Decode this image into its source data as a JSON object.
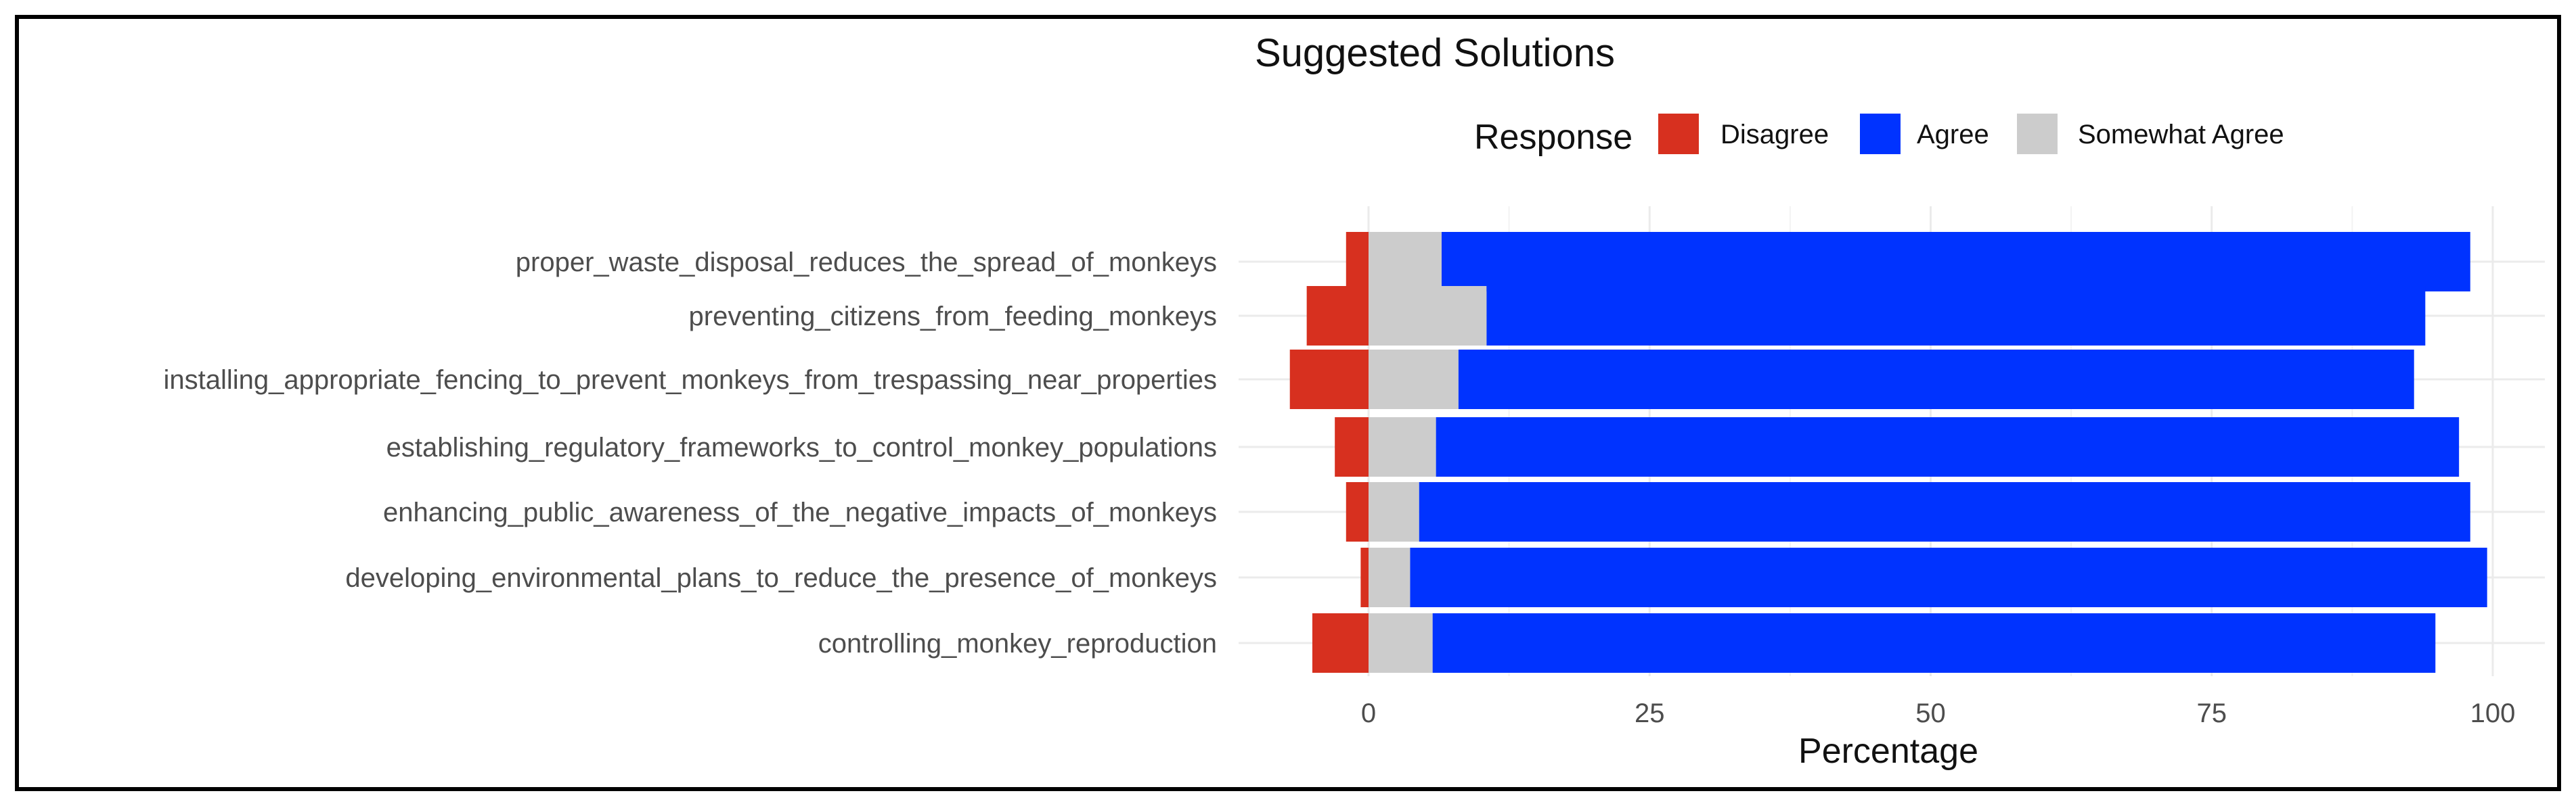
{
  "chart_data": {
    "type": "bar",
    "orientation": "horizontal",
    "stacked": "diverging",
    "title": "Suggested Solutions",
    "xlabel": "Percentage",
    "ylabel": "",
    "xlim": [
      -8,
      101
    ],
    "x_ticks": [
      0,
      25,
      50,
      75,
      100
    ],
    "grid": true,
    "legend": {
      "title": "Response",
      "placement": "top-right",
      "entries": [
        "Disagree",
        "Agree",
        "Somewhat Agree"
      ]
    },
    "categories": [
      "proper_waste_disposal_reduces_the_spread_of_monkeys",
      "preventing_citizens_from_feeding_monkeys",
      "installing_appropriate_fencing_to_prevent_monkeys_from_trespassing_near_properties",
      "establishing_regulatory_frameworks_to_control_monkey_populations",
      "enhancing_public_awareness_of_the_negative_impacts_of_monkeys",
      "developing_environmental_plans_to_reduce_the_presence_of_monkeys",
      "controlling_monkey_reproduction"
    ],
    "series": [
      {
        "name": "Disagree",
        "color": "#d7301f",
        "direction": "negative",
        "values": [
          2.0,
          5.5,
          7.0,
          3.0,
          2.0,
          0.7,
          5.0
        ]
      },
      {
        "name": "Somewhat Agree",
        "color": "#cccccc",
        "direction": "positive",
        "values": [
          6.5,
          10.5,
          8.0,
          6.0,
          4.5,
          3.7,
          5.7
        ]
      },
      {
        "name": "Agree",
        "color": "#0033ff",
        "direction": "positive",
        "values": [
          91.5,
          83.5,
          85.0,
          91.0,
          93.5,
          95.8,
          89.2
        ]
      }
    ]
  }
}
